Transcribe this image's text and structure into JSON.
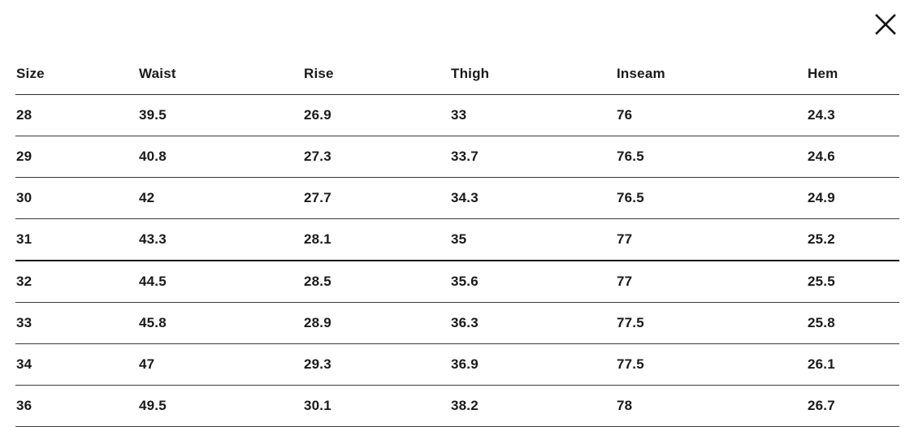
{
  "modal": {
    "close_icon": "close-icon"
  },
  "table": {
    "columns": [
      "Size",
      "Waist",
      "Rise",
      "Thigh",
      "Inseam",
      "Hem"
    ],
    "rows": [
      [
        "28",
        "39.5",
        "26.9",
        "33",
        "76",
        "24.3"
      ],
      [
        "29",
        "40.8",
        "27.3",
        "33.7",
        "76.5",
        "24.6"
      ],
      [
        "30",
        "42",
        "27.7",
        "34.3",
        "76.5",
        "24.9"
      ],
      [
        "31",
        "43.3",
        "28.1",
        "35",
        "77",
        "25.2"
      ],
      [
        "32",
        "44.5",
        "28.5",
        "35.6",
        "77",
        "25.5"
      ],
      [
        "33",
        "45.8",
        "28.9",
        "36.3",
        "77.5",
        "25.8"
      ],
      [
        "34",
        "47",
        "29.3",
        "36.9",
        "77.5",
        "26.1"
      ],
      [
        "36",
        "49.5",
        "30.1",
        "38.2",
        "78",
        "26.7"
      ]
    ]
  },
  "colors": {
    "text": "#1a1a1a",
    "rule": "#3a3a3a",
    "background": "#ffffff"
  }
}
